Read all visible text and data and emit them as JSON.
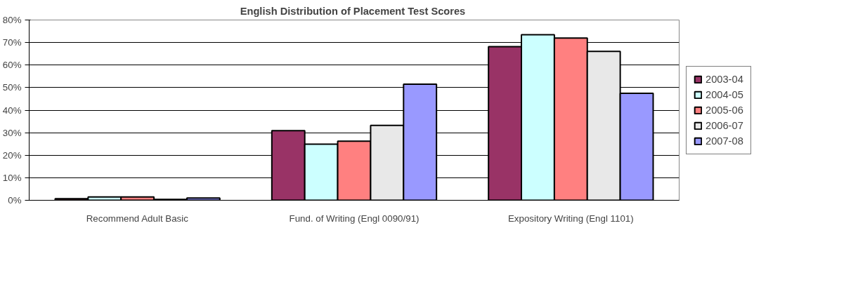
{
  "chart_data": {
    "type": "bar",
    "title": "English Distribution of  Placement Test Scores",
    "categories": [
      "Recommend Adult Basic",
      "Fund. of Writing (Engl 0090/91)",
      "Expository Writing (Engl 1101)"
    ],
    "series": [
      {
        "name": "2003-04",
        "color": "#993366",
        "values": [
          0.7,
          30.9,
          68.2
        ]
      },
      {
        "name": "2004-05",
        "color": "#ccffff",
        "values": [
          1.5,
          24.9,
          73.5
        ]
      },
      {
        "name": "2005-06",
        "color": "#ff8080",
        "values": [
          1.5,
          26.2,
          72.0
        ]
      },
      {
        "name": "2006-07",
        "color": "#e8e8e8",
        "values": [
          0.4,
          33.2,
          66.1
        ]
      },
      {
        "name": "2007-08",
        "color": "#9999ff",
        "values": [
          1.0,
          51.5,
          47.5
        ]
      }
    ],
    "ylim": [
      0,
      80
    ],
    "yticks": [
      {
        "value": 0,
        "label": "0%"
      },
      {
        "value": 10,
        "label": "10%"
      },
      {
        "value": 20,
        "label": "20%"
      },
      {
        "value": 30,
        "label": "30%"
      },
      {
        "value": 40,
        "label": "40%"
      },
      {
        "value": 50,
        "label": "50%"
      },
      {
        "value": 60,
        "label": "60%"
      },
      {
        "value": 70,
        "label": "70%"
      },
      {
        "value": 80,
        "label": "80%"
      }
    ],
    "grid": "y",
    "legend": "right"
  }
}
